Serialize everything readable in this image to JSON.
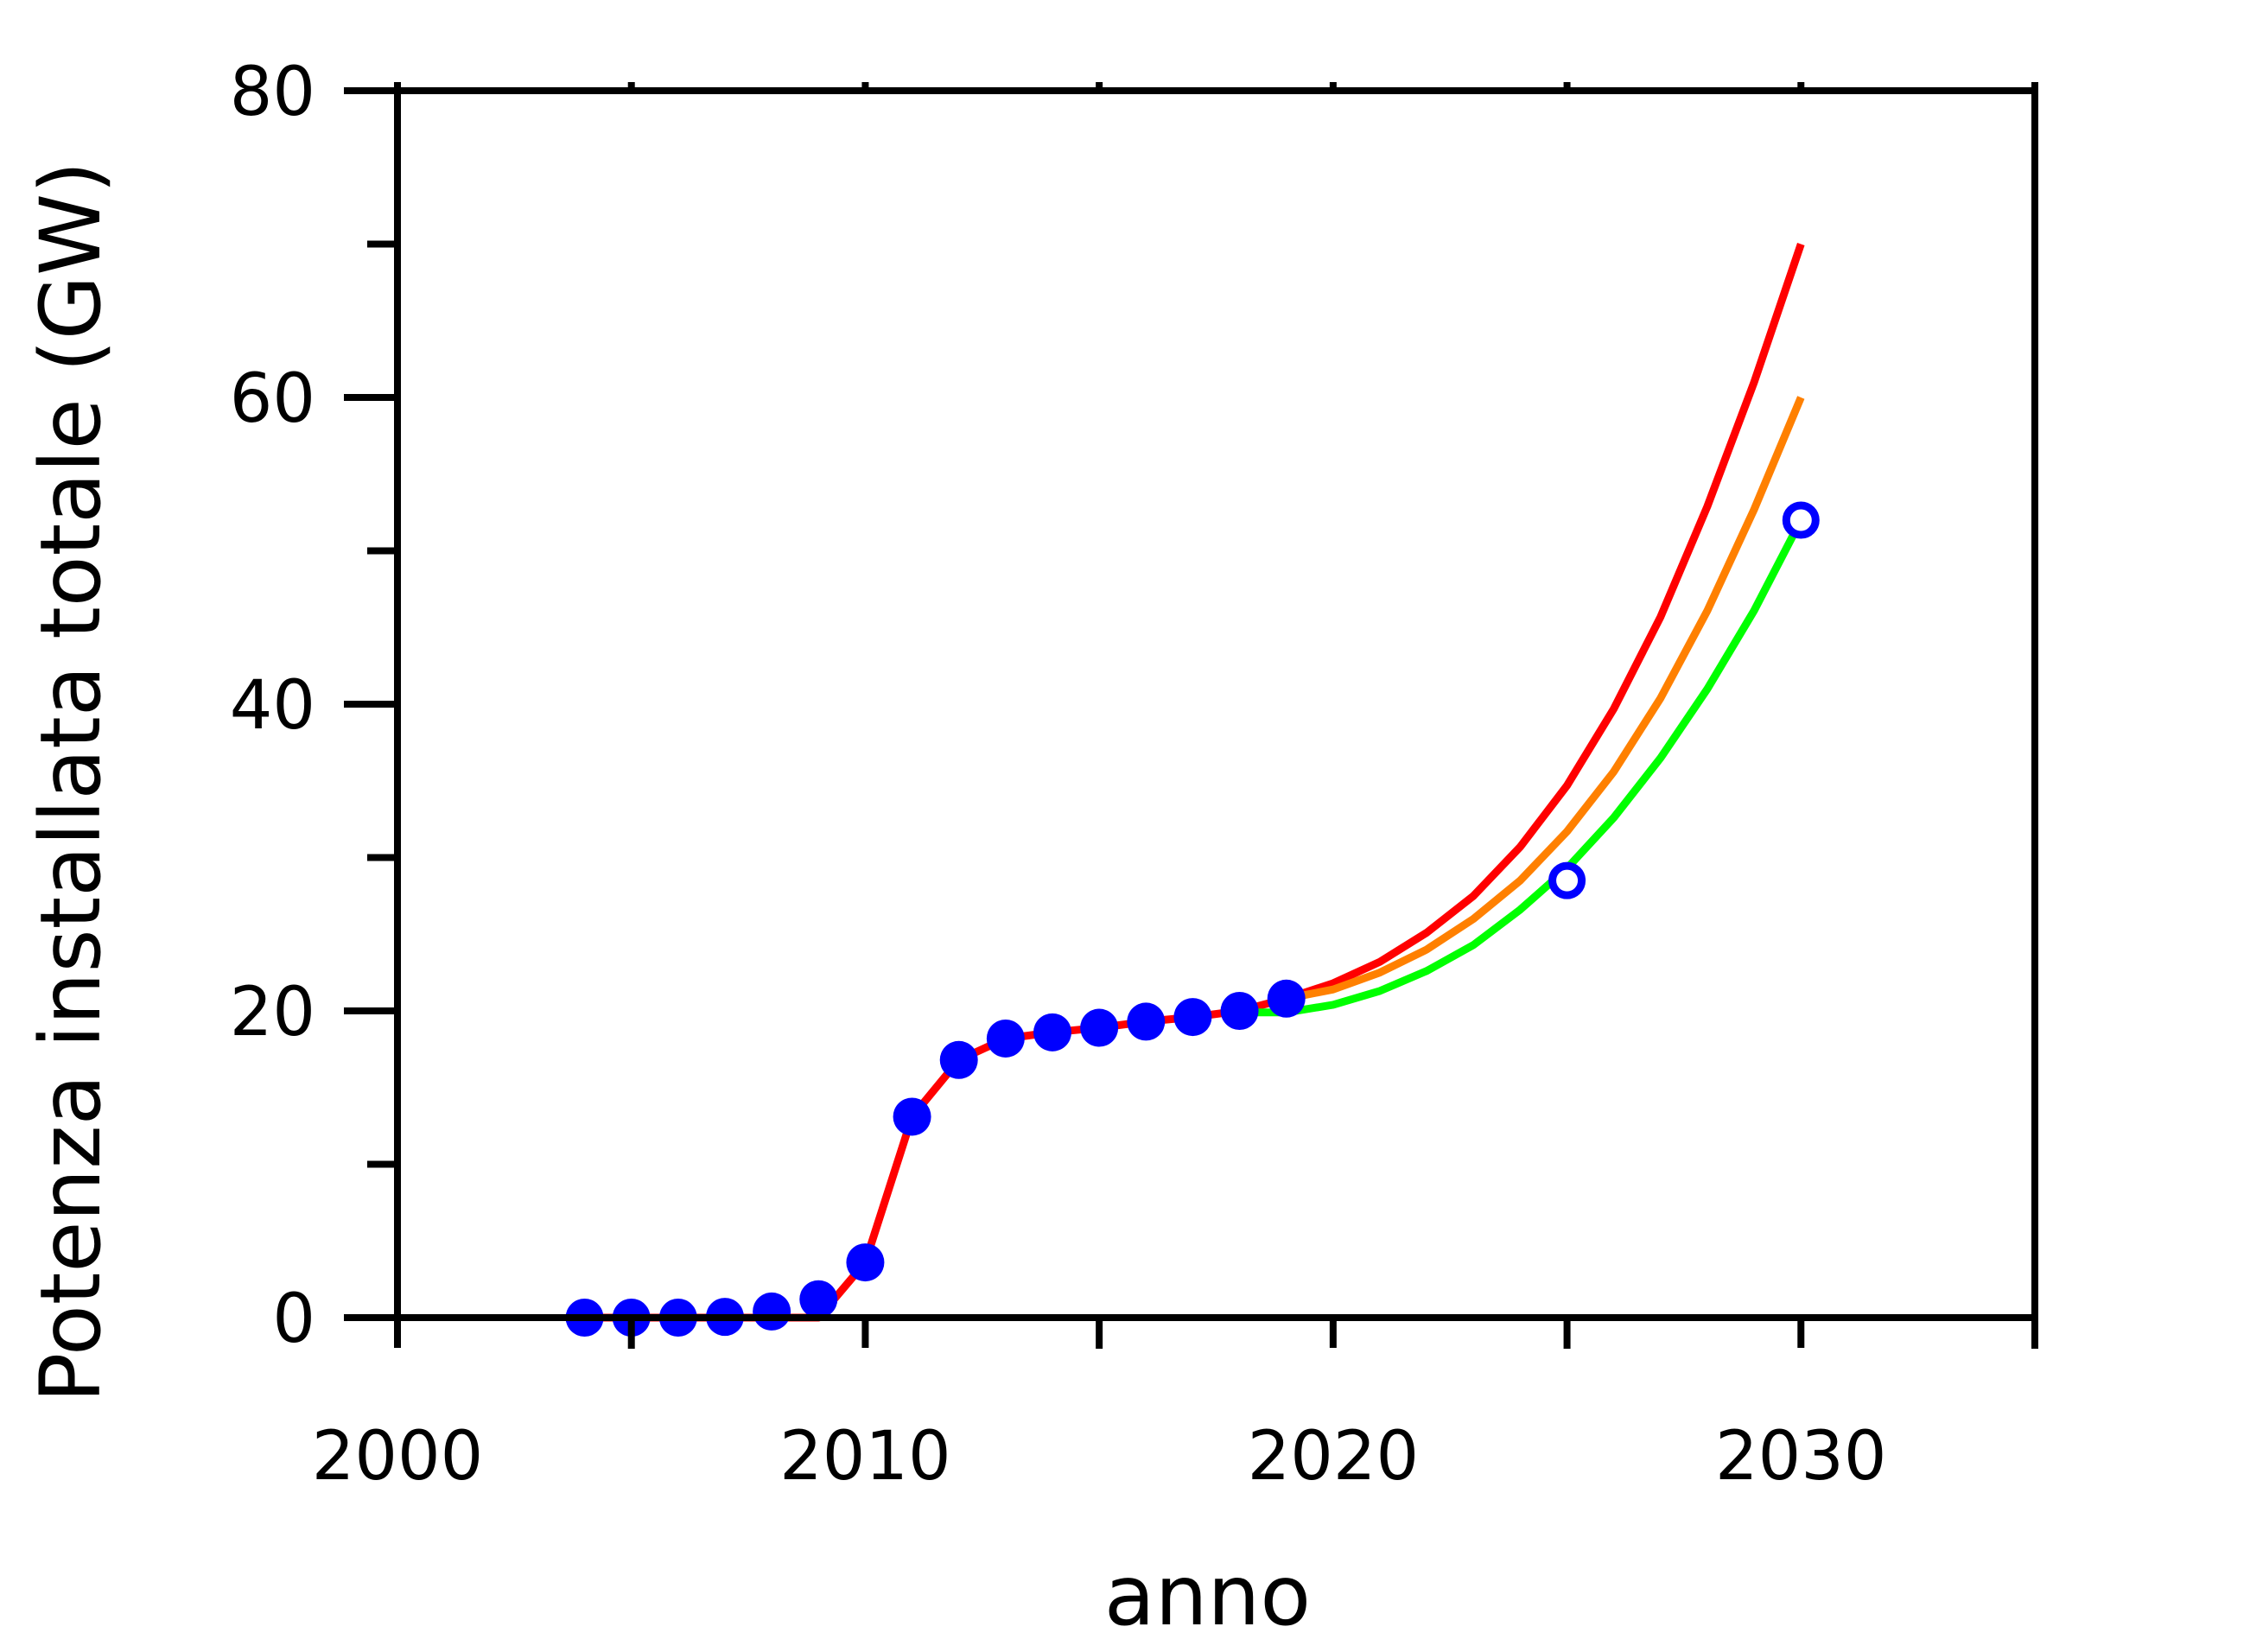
{
  "chart_data": {
    "type": "line",
    "title": "",
    "xlabel": "anno",
    "ylabel": "Potenza installata totale (GW)",
    "xlim": [
      2000,
      2035
    ],
    "ylim": [
      0,
      80
    ],
    "x_ticks": [
      2000,
      2010,
      2020,
      2030
    ],
    "x_minor_ticks": [
      2005,
      2015,
      2025,
      2035
    ],
    "y_ticks": [
      0,
      20,
      40,
      60,
      80
    ],
    "y_minor_ticks": [
      10,
      30,
      50,
      70
    ],
    "grid": false,
    "series": [
      {
        "color": "#ff0000",
        "style": "line",
        "x": [
          2004,
          2005,
          2006,
          2007,
          2008,
          2009,
          2010,
          2011,
          2012,
          2013,
          2014,
          2015,
          2016,
          2017,
          2018,
          2019,
          2020,
          2021,
          2022,
          2023,
          2024,
          2025,
          2026,
          2027,
          2028,
          2029,
          2030
        ],
        "values": [
          0,
          0,
          0,
          0,
          0,
          0,
          3.6,
          13.1,
          16.8,
          18.2,
          18.6,
          18.9,
          19.3,
          19.6,
          20.0,
          20.8,
          21.8,
          23.2,
          25.1,
          27.5,
          30.7,
          34.7,
          39.7,
          45.7,
          52.9,
          61.0,
          70.0
        ]
      },
      {
        "color": "#ff8000",
        "style": "line",
        "x": [
          2019,
          2020,
          2021,
          2022,
          2023,
          2024,
          2025,
          2026,
          2027,
          2028,
          2029,
          2030
        ],
        "values": [
          20.8,
          21.4,
          22.5,
          24.0,
          26.0,
          28.5,
          31.7,
          35.6,
          40.4,
          46.1,
          52.7,
          60.0
        ]
      },
      {
        "color": "#00ff00",
        "style": "line",
        "x": [
          2018,
          2019,
          2020,
          2021,
          2022,
          2023,
          2024,
          2025,
          2026,
          2027,
          2028,
          2029,
          2030
        ],
        "values": [
          19.9,
          19.9,
          20.4,
          21.3,
          22.6,
          24.3,
          26.6,
          29.3,
          32.6,
          36.5,
          41.0,
          46.1,
          52.0
        ]
      },
      {
        "color": "#0000ff",
        "style": "filled-markers",
        "x": [
          2004,
          2005,
          2006,
          2007,
          2008,
          2009,
          2010,
          2011,
          2012,
          2013,
          2014,
          2015,
          2016,
          2017,
          2018,
          2019
        ],
        "values": [
          0,
          0,
          0,
          0.05,
          0.4,
          1.2,
          3.6,
          13.1,
          16.8,
          18.2,
          18.6,
          18.9,
          19.3,
          19.6,
          20.0,
          20.8
        ]
      },
      {
        "color": "#0000ff",
        "style": "open-markers",
        "x": [
          2025,
          2030
        ],
        "values": [
          28.5,
          52.0
        ]
      }
    ]
  }
}
